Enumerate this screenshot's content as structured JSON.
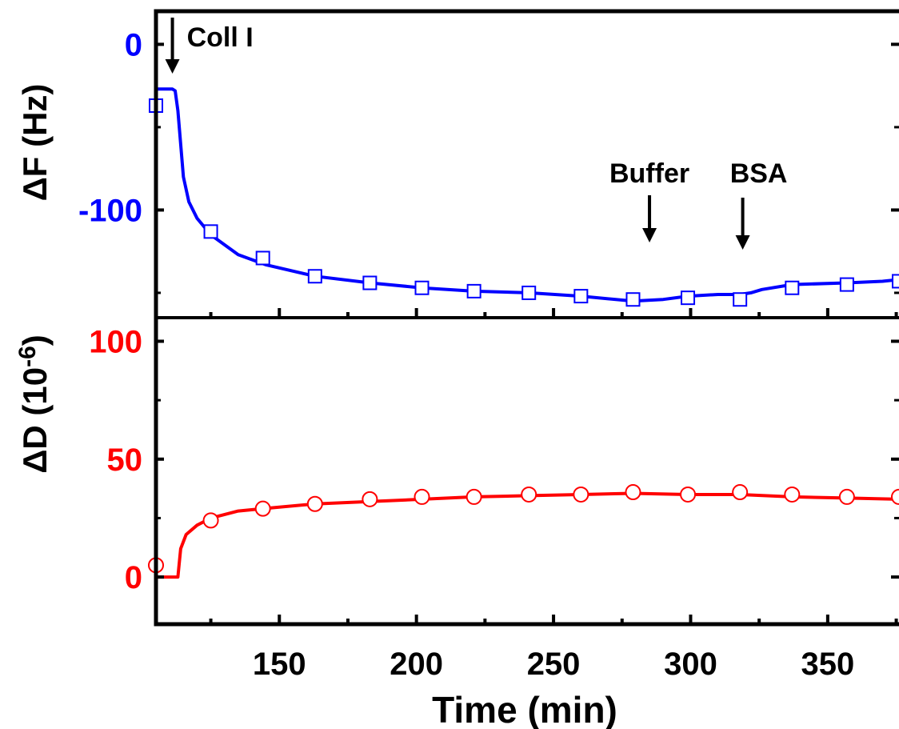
{
  "chart_data": [
    {
      "type": "line",
      "panel": "top",
      "ylabel": "ΔF (Hz)",
      "ylabel_color": "#0000ff",
      "yticks": [
        0,
        -100
      ],
      "ytick_labels": [
        "0",
        "-100"
      ],
      "ylim": [
        -165,
        20
      ],
      "xlim": [
        105,
        376
      ],
      "color": "#0000ff",
      "marker": "open-square",
      "series": [
        {
          "values_line": [
            [
              105,
              -27
            ],
            [
              111,
              -27
            ],
            [
              112,
              -28
            ],
            [
              113,
              -40
            ],
            [
              115,
              -80
            ],
            [
              117,
              -95
            ],
            [
              120,
              -105
            ],
            [
              125,
              -115
            ],
            [
              135,
              -127
            ],
            [
              145,
              -133
            ],
            [
              163,
              -140
            ],
            [
              183,
              -144
            ],
            [
              202,
              -147
            ],
            [
              221,
              -149
            ],
            [
              241,
              -150
            ],
            [
              260,
              -152
            ],
            [
              279,
              -155
            ],
            [
              290,
              -154
            ],
            [
              299,
              -152
            ],
            [
              310,
              -151
            ],
            [
              318,
              -151
            ],
            [
              322,
              -150
            ],
            [
              326,
              -148
            ],
            [
              337,
              -145
            ],
            [
              357,
              -144
            ],
            [
              370,
              -143
            ],
            [
              376,
              -142
            ]
          ],
          "markers": [
            [
              105,
              -37
            ],
            [
              125,
              -113
            ],
            [
              144,
              -129
            ],
            [
              163,
              -140
            ],
            [
              183,
              -144
            ],
            [
              202,
              -147
            ],
            [
              221,
              -149
            ],
            [
              241,
              -150
            ],
            [
              260,
              -152
            ],
            [
              279,
              -154
            ],
            [
              299,
              -153
            ],
            [
              318,
              -154
            ],
            [
              337,
              -147
            ],
            [
              357,
              -145
            ],
            [
              376,
              -143
            ]
          ]
        }
      ],
      "annotations": [
        {
          "text": "Coll I",
          "x": 111
        },
        {
          "text": "Buffer",
          "x": 285
        },
        {
          "text": "BSA",
          "x": 319
        }
      ]
    },
    {
      "type": "line",
      "panel": "bottom",
      "ylabel": "ΔD (10-6)",
      "ylabel_base": "ΔD (10",
      "ylabel_exp": "-6",
      "ylabel_close": ")",
      "ylabel_color": "#ff0000",
      "yticks": [
        0,
        50,
        100
      ],
      "ytick_labels": [
        "0",
        "50",
        "100"
      ],
      "ylim": [
        -20,
        110
      ],
      "xlim": [
        105,
        376
      ],
      "xticks": [
        150,
        200,
        250,
        300,
        350
      ],
      "xtick_labels": [
        "150",
        "200",
        "250",
        "300",
        "350"
      ],
      "xlabel": "Time (min)",
      "color": "#ff0000",
      "marker": "open-circle",
      "series": [
        {
          "values_line": [
            [
              105,
              0
            ],
            [
              112,
              0
            ],
            [
              113,
              0
            ],
            [
              114,
              12
            ],
            [
              116,
              18
            ],
            [
              120,
              22
            ],
            [
              125,
              25
            ],
            [
              135,
              28
            ],
            [
              144,
              29
            ],
            [
              163,
              31
            ],
            [
              183,
              32
            ],
            [
              202,
              33
            ],
            [
              221,
              34
            ],
            [
              241,
              34.5
            ],
            [
              260,
              35
            ],
            [
              279,
              35.5
            ],
            [
              299,
              35
            ],
            [
              318,
              35
            ],
            [
              337,
              34
            ],
            [
              357,
              33.5
            ],
            [
              376,
              33
            ]
          ],
          "markers": [
            [
              105,
              5
            ],
            [
              125,
              24
            ],
            [
              144,
              29
            ],
            [
              163,
              31
            ],
            [
              183,
              33
            ],
            [
              202,
              34
            ],
            [
              221,
              34
            ],
            [
              241,
              35
            ],
            [
              260,
              35
            ],
            [
              279,
              36
            ],
            [
              299,
              35
            ],
            [
              318,
              36
            ],
            [
              337,
              35
            ],
            [
              357,
              34
            ],
            [
              376,
              34
            ]
          ]
        }
      ]
    }
  ]
}
